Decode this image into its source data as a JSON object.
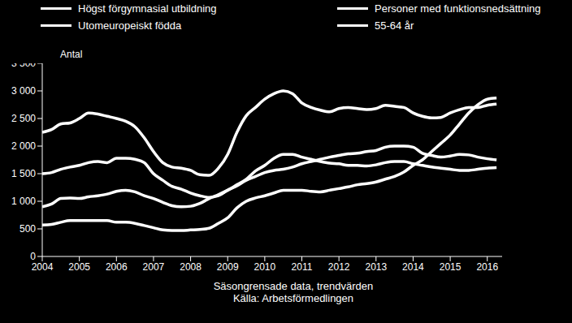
{
  "chart_data": {
    "type": "line",
    "y_label": "Antal",
    "x_label": "Säsongrensade data, trendvärden",
    "source": "Källa: Arbetsförmedlingen",
    "x": [
      2004,
      2004.25,
      2004.5,
      2004.75,
      2005,
      2005.25,
      2005.5,
      2005.75,
      2006,
      2006.25,
      2006.5,
      2006.75,
      2007,
      2007.25,
      2007.5,
      2007.75,
      2008,
      2008.25,
      2008.5,
      2008.75,
      2009,
      2009.25,
      2009.5,
      2009.75,
      2010,
      2010.25,
      2010.5,
      2010.75,
      2011,
      2011.25,
      2011.5,
      2011.75,
      2012,
      2012.25,
      2012.5,
      2012.75,
      2013,
      2013.25,
      2013.5,
      2013.75,
      2014,
      2014.25,
      2014.5,
      2014.75,
      2015,
      2015.25,
      2015.5,
      2015.75,
      2016,
      2016.25
    ],
    "series": [
      {
        "name": "Högst förgymnasial utbildning",
        "color": "#ffffff",
        "values": [
          2250,
          2300,
          2400,
          2420,
          2500,
          2600,
          2580,
          2540,
          2500,
          2450,
          2350,
          2150,
          1900,
          1700,
          1620,
          1600,
          1560,
          1480,
          1470,
          1600,
          1850,
          2250,
          2550,
          2700,
          2850,
          2950,
          3000,
          2950,
          2780,
          2700,
          2650,
          2620,
          2680,
          2700,
          2680,
          2660,
          2680,
          2740,
          2720,
          2700,
          2600,
          2540,
          2510,
          2520,
          2600,
          2660,
          2700,
          2700,
          2740,
          2760
        ]
      },
      {
        "name": "Personer med funktionsnedsättning",
        "color": "#ffffff",
        "values": [
          900,
          950,
          1050,
          1060,
          1050,
          1080,
          1100,
          1130,
          1180,
          1200,
          1170,
          1100,
          1050,
          980,
          920,
          900,
          910,
          960,
          1050,
          1120,
          1200,
          1300,
          1400,
          1550,
          1650,
          1780,
          1850,
          1850,
          1800,
          1760,
          1720,
          1690,
          1680,
          1650,
          1650,
          1640,
          1660,
          1700,
          1720,
          1720,
          1680,
          1650,
          1620,
          1600,
          1580,
          1560,
          1560,
          1580,
          1600,
          1610
        ]
      },
      {
        "name": "Utomeuropeiskt födda",
        "color": "#ffffff",
        "values": [
          570,
          580,
          620,
          650,
          650,
          650,
          650,
          650,
          620,
          620,
          600,
          560,
          520,
          480,
          470,
          470,
          480,
          490,
          510,
          600,
          700,
          880,
          1000,
          1060,
          1100,
          1150,
          1200,
          1200,
          1200,
          1180,
          1170,
          1200,
          1230,
          1260,
          1300,
          1320,
          1350,
          1400,
          1450,
          1530,
          1650,
          1750,
          1900,
          2050,
          2200,
          2400,
          2600,
          2750,
          2850,
          2870
        ]
      },
      {
        "name": "55-64 år",
        "color": "#ffffff",
        "values": [
          1500,
          1520,
          1580,
          1620,
          1650,
          1700,
          1720,
          1700,
          1780,
          1780,
          1760,
          1700,
          1500,
          1380,
          1270,
          1220,
          1150,
          1100,
          1070,
          1100,
          1200,
          1280,
          1380,
          1450,
          1520,
          1560,
          1580,
          1620,
          1680,
          1720,
          1760,
          1800,
          1830,
          1860,
          1870,
          1900,
          1920,
          1980,
          2000,
          2000,
          1980,
          1870,
          1830,
          1800,
          1820,
          1850,
          1840,
          1800,
          1770,
          1750
        ]
      }
    ],
    "xlim": [
      2004,
      2016.4
    ],
    "xticks": [
      2004,
      2005,
      2006,
      2007,
      2008,
      2009,
      2010,
      2011,
      2012,
      2013,
      2014,
      2015,
      2016
    ],
    "ylim": [
      0,
      3500
    ],
    "yticks": [
      0,
      500,
      {
        "value": 1000,
        "label": "1 000"
      },
      {
        "value": 1500,
        "label": "1 500"
      },
      {
        "value": 2000,
        "label": "2 000"
      },
      {
        "value": 2500,
        "label": "2 500"
      },
      {
        "value": 3000,
        "label": "3 000"
      },
      {
        "value": 3500,
        "label": "3 500"
      }
    ],
    "grid": false
  }
}
